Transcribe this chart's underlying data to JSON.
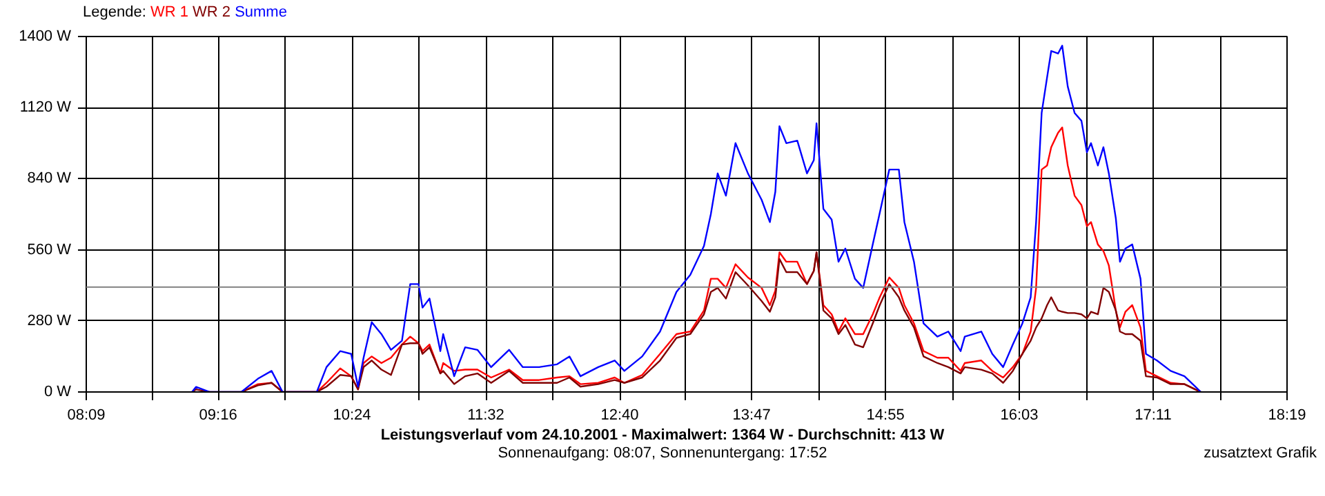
{
  "chart_data": {
    "type": "line",
    "title": "Leistungsverlauf vom 24.10.2001 - Maximalwert: 1364 W - Durchschnitt: 413 W",
    "subtitle": "Sonnenaufgang: 08:07, Sonnenuntergang: 17:52",
    "legend_title": "Legende:",
    "annotations": [
      "zusatztext Grafik"
    ],
    "x": [
      9.045,
      9.08,
      9.196,
      9.463,
      9.603,
      9.719,
      9.812,
      10.102,
      10.184,
      10.3,
      10.393,
      10.451,
      10.498,
      10.567,
      10.649,
      10.73,
      10.823,
      10.893,
      10.963,
      10.997,
      11.056,
      11.148,
      11.172,
      11.265,
      11.358,
      11.462,
      11.578,
      11.73,
      11.846,
      11.985,
      12.136,
      12.241,
      12.334,
      12.485,
      12.624,
      12.706,
      12.857,
      13.008,
      13.147,
      13.264,
      13.38,
      13.438,
      13.496,
      13.566,
      13.647,
      13.752,
      13.868,
      13.938,
      13.984,
      14.019,
      14.077,
      14.17,
      14.252,
      14.31,
      14.333,
      14.391,
      14.461,
      14.519,
      14.577,
      14.658,
      14.728,
      14.809,
      14.868,
      14.949,
      15.03,
      15.077,
      15.158,
      15.239,
      15.356,
      15.449,
      15.553,
      15.588,
      15.728,
      15.821,
      15.913,
      15.995,
      16.076,
      16.146,
      16.192,
      16.239,
      16.285,
      16.32,
      16.378,
      16.413,
      16.46,
      16.518,
      16.576,
      16.622,
      16.657,
      16.715,
      16.762,
      16.808,
      16.867,
      16.902,
      16.948,
      17.006,
      17.076,
      17.122,
      17.215,
      17.331,
      17.448,
      17.541,
      17.587
    ],
    "series": [
      {
        "name": "WR 1",
        "color": "#ff0000",
        "values": [
          null,
          null,
          null,
          0,
          31,
          36,
          0,
          0,
          36,
          93,
          62,
          10,
          114,
          140,
          114,
          135,
          187,
          218,
          192,
          161,
          187,
          73,
          114,
          83,
          88,
          88,
          57,
          88,
          47,
          47,
          57,
          62,
          31,
          36,
          57,
          36,
          67,
          150,
          228,
          238,
          321,
          446,
          446,
          410,
          503,
          451,
          410,
          342,
          399,
          550,
          513,
          513,
          425,
          477,
          550,
          342,
          306,
          238,
          290,
          228,
          228,
          306,
          373,
          451,
          410,
          342,
          270,
          161,
          135,
          135,
          83,
          114,
          124,
          83,
          57,
          98,
          150,
          238,
          410,
          876,
          892,
          964,
          1021,
          1042,
          892,
          773,
          736,
          653,
          669,
          581,
          555,
          498,
          321,
          254,
          316,
          342,
          254,
          83,
          62,
          36,
          31,
          10,
          0
        ]
      },
      {
        "name": "WR 2",
        "color": "#800000",
        "values": [
          0,
          10,
          0,
          0,
          26,
          36,
          0,
          0,
          21,
          67,
          62,
          10,
          98,
          124,
          88,
          67,
          187,
          192,
          192,
          150,
          176,
          73,
          83,
          31,
          62,
          73,
          36,
          83,
          36,
          36,
          36,
          57,
          21,
          31,
          47,
          36,
          57,
          124,
          213,
          228,
          306,
          394,
          410,
          368,
          472,
          420,
          358,
          316,
          373,
          524,
          472,
          472,
          425,
          477,
          550,
          321,
          290,
          228,
          264,
          187,
          176,
          270,
          342,
          425,
          373,
          321,
          254,
          140,
          114,
          98,
          73,
          98,
          88,
          73,
          36,
          83,
          150,
          202,
          254,
          290,
          342,
          373,
          321,
          316,
          311,
          311,
          306,
          290,
          316,
          306,
          410,
          394,
          321,
          238,
          228,
          228,
          202,
          62,
          57,
          31,
          31,
          10,
          0
        ]
      },
      {
        "name": "Summe",
        "color": "#0000ff",
        "values": [
          0,
          20,
          0,
          0,
          52,
          83,
          0,
          0,
          98,
          161,
          150,
          21,
          135,
          275,
          228,
          166,
          202,
          425,
          425,
          332,
          368,
          161,
          228,
          62,
          176,
          166,
          98,
          166,
          98,
          98,
          109,
          140,
          62,
          98,
          124,
          83,
          140,
          238,
          394,
          461,
          575,
          700,
          861,
          773,
          980,
          861,
          757,
          669,
          788,
          1047,
          980,
          990,
          861,
          913,
          1058,
          721,
          679,
          513,
          565,
          446,
          410,
          581,
          705,
          876,
          876,
          669,
          513,
          270,
          218,
          238,
          161,
          218,
          238,
          150,
          98,
          187,
          270,
          373,
          669,
          1099,
          1239,
          1343,
          1333,
          1364,
          1203,
          1099,
          1068,
          944,
          980,
          892,
          964,
          861,
          684,
          513,
          565,
          581,
          446,
          150,
          124,
          83,
          62,
          21,
          0
        ]
      }
    ],
    "xlim": [
      8.15,
      18.3167
    ],
    "xticks": [
      {
        "value": 8.15,
        "label": "08:09"
      },
      {
        "value": 8.7083,
        "label": null
      },
      {
        "value": 9.2667,
        "label": "09:16"
      },
      {
        "value": 9.8333,
        "label": null
      },
      {
        "value": 10.4,
        "label": "10:24"
      },
      {
        "value": 10.9667,
        "label": null
      },
      {
        "value": 11.5333,
        "label": "11:32"
      },
      {
        "value": 12.1,
        "label": null
      },
      {
        "value": 12.6667,
        "label": "12:40"
      },
      {
        "value": 13.225,
        "label": null
      },
      {
        "value": 13.7833,
        "label": "13:47"
      },
      {
        "value": 14.35,
        "label": null
      },
      {
        "value": 14.9167,
        "label": "14:55"
      },
      {
        "value": 15.4833,
        "label": null
      },
      {
        "value": 16.05,
        "label": "16:03"
      },
      {
        "value": 16.6167,
        "label": null
      },
      {
        "value": 17.1833,
        "label": "17:11"
      },
      {
        "value": 17.75,
        "label": null
      },
      {
        "value": 18.3167,
        "label": "18:19"
      }
    ],
    "ylim": [
      0,
      1400
    ],
    "yticks": [
      {
        "value": 0,
        "label": "0 W"
      },
      {
        "value": 280,
        "label": "280 W"
      },
      {
        "value": 560,
        "label": "560 W"
      },
      {
        "value": 840,
        "label": "840 W"
      },
      {
        "value": 1120,
        "label": "1120 W"
      },
      {
        "value": 1400,
        "label": "1400 W"
      }
    ],
    "ref_lines": [
      {
        "axis": "y",
        "value": 413,
        "color": "#808080"
      }
    ],
    "grid": true,
    "legend": "top left"
  }
}
